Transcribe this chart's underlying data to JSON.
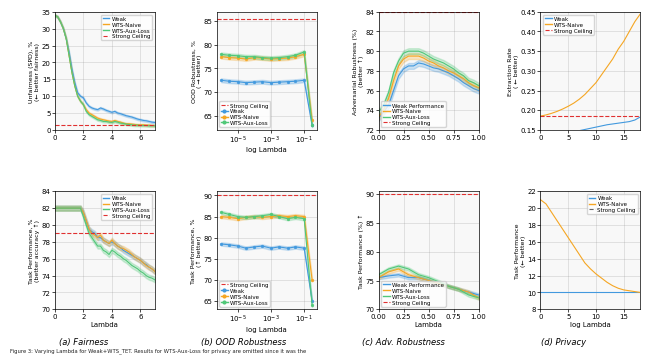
{
  "fairness_top": {
    "ylabel": "Unfairness (SPD), %\n(← better fairness)",
    "xlabel": "Lambda",
    "xlim": [
      0,
      7
    ],
    "ylim": [
      0,
      35
    ],
    "yticks": [
      0,
      5,
      10,
      15,
      20,
      25,
      30,
      35
    ],
    "strong_ceiling": 1.5,
    "weak_x": [
      0,
      0.2,
      0.4,
      0.6,
      0.8,
      1.0,
      1.2,
      1.4,
      1.6,
      1.8,
      2.0,
      2.2,
      2.4,
      2.6,
      2.8,
      3.0,
      3.2,
      3.4,
      3.6,
      3.8,
      4.0,
      4.2,
      4.4,
      4.6,
      4.8,
      5.0,
      5.2,
      5.4,
      5.6,
      5.8,
      6.0,
      6.2,
      6.4,
      6.6,
      6.8,
      7.0
    ],
    "weak_y": [
      34,
      33.5,
      32,
      30,
      27,
      23,
      18,
      14,
      11,
      10,
      9.5,
      8,
      7,
      6.5,
      6.2,
      6.0,
      6.5,
      6.2,
      5.8,
      5.5,
      5.2,
      5.5,
      5.0,
      4.8,
      4.5,
      4.2,
      4.0,
      3.8,
      3.5,
      3.2,
      3.0,
      2.8,
      2.7,
      2.5,
      2.3,
      2.2
    ],
    "naive_x": [
      0,
      0.2,
      0.4,
      0.6,
      0.8,
      1.0,
      1.2,
      1.4,
      1.6,
      1.8,
      2.0,
      2.2,
      2.4,
      2.6,
      2.8,
      3.0,
      3.2,
      3.4,
      3.6,
      3.8,
      4.0,
      4.2,
      4.4,
      4.6,
      4.8,
      5.0,
      5.2,
      5.4,
      5.6,
      5.8,
      6.0,
      6.2,
      6.4,
      6.6,
      6.8,
      7.0
    ],
    "naive_y": [
      34,
      33.5,
      32,
      30,
      27,
      22,
      17,
      13,
      10,
      8.5,
      7.5,
      6,
      5,
      4.5,
      4.0,
      3.5,
      3.2,
      3.0,
      2.8,
      2.6,
      2.5,
      2.8,
      2.5,
      2.3,
      2.0,
      1.8,
      1.8,
      1.7,
      1.6,
      1.5,
      1.5,
      1.5,
      1.4,
      1.4,
      1.3,
      1.3
    ],
    "aux_x": [
      0,
      0.2,
      0.4,
      0.6,
      0.8,
      1.0,
      1.2,
      1.4,
      1.6,
      1.8,
      2.0,
      2.2,
      2.4,
      2.6,
      2.8,
      3.0,
      3.2,
      3.4,
      3.6,
      3.8,
      4.0,
      4.2,
      4.4,
      4.6,
      4.8,
      5.0,
      5.2,
      5.4,
      5.6,
      5.8,
      6.0,
      6.2,
      6.4,
      6.6,
      6.8,
      7.0
    ],
    "aux_y": [
      34,
      33.5,
      32,
      30,
      27,
      22,
      17,
      13,
      10,
      8.5,
      7.5,
      5.5,
      4.5,
      4.0,
      3.5,
      3.0,
      2.8,
      2.5,
      2.5,
      2.3,
      2.2,
      2.5,
      2.3,
      2.0,
      1.9,
      1.7,
      1.6,
      1.5,
      1.4,
      1.4,
      1.3,
      1.3,
      1.3,
      1.2,
      1.2,
      1.2
    ],
    "weak_color": "#4299de",
    "naive_color": "#f5a623",
    "aux_color": "#50c878",
    "ceiling_color": "#e03030",
    "legend_order": [
      "Weak",
      "WTS-Naive",
      "WTS-Aux-Loss",
      "Strong Ceiling"
    ],
    "legend_loc": "upper right"
  },
  "fairness_bottom": {
    "ylabel": "Task Performance, %\n(better accuracy ↑)",
    "xlabel": "Lambda",
    "xlim": [
      0,
      7
    ],
    "ylim": [
      70,
      84
    ],
    "yticks": [
      70,
      72,
      74,
      76,
      78,
      80,
      82,
      84
    ],
    "strong_ceiling": 79.0,
    "weak_x": [
      0,
      0.2,
      0.4,
      0.6,
      0.8,
      1.0,
      1.2,
      1.4,
      1.6,
      1.8,
      2.0,
      2.2,
      2.4,
      2.6,
      2.8,
      3.0,
      3.2,
      3.4,
      3.6,
      3.8,
      4.0,
      4.2,
      4.4,
      4.6,
      4.8,
      5.0,
      5.2,
      5.4,
      5.6,
      5.8,
      6.0,
      6.2,
      6.4,
      6.6,
      6.8,
      7.0
    ],
    "weak_y": [
      82,
      82,
      82,
      82,
      82,
      82,
      82,
      82,
      82,
      82,
      81.5,
      80.5,
      79.5,
      79.2,
      79.0,
      78.5,
      78.5,
      78.2,
      78.0,
      77.8,
      78.0,
      77.8,
      77.5,
      77.3,
      77.0,
      76.8,
      76.6,
      76.4,
      76.2,
      76.0,
      75.8,
      75.5,
      75.3,
      75.0,
      74.8,
      74.5
    ],
    "naive_x": [
      0,
      0.2,
      0.4,
      0.6,
      0.8,
      1.0,
      1.2,
      1.4,
      1.6,
      1.8,
      2.0,
      2.2,
      2.4,
      2.6,
      2.8,
      3.0,
      3.2,
      3.4,
      3.6,
      3.8,
      4.0,
      4.2,
      4.4,
      4.6,
      4.8,
      5.0,
      5.2,
      5.4,
      5.6,
      5.8,
      6.0,
      6.2,
      6.4,
      6.6,
      6.8,
      7.0
    ],
    "naive_y": [
      82,
      82,
      82,
      82,
      82,
      82,
      82,
      82,
      82,
      82,
      81.5,
      80.5,
      79.5,
      79.0,
      78.8,
      78.5,
      78.8,
      78.2,
      78.0,
      77.8,
      78.2,
      77.8,
      77.5,
      77.3,
      77.2,
      77.0,
      76.8,
      76.5,
      76.2,
      76.0,
      75.8,
      75.5,
      75.2,
      75.0,
      74.8,
      74.5
    ],
    "aux_x": [
      0,
      0.2,
      0.4,
      0.6,
      0.8,
      1.0,
      1.2,
      1.4,
      1.6,
      1.8,
      2.0,
      2.2,
      2.4,
      2.6,
      2.8,
      3.0,
      3.2,
      3.4,
      3.6,
      3.8,
      4.0,
      4.2,
      4.4,
      4.6,
      4.8,
      5.0,
      5.2,
      5.4,
      5.6,
      5.8,
      6.0,
      6.2,
      6.4,
      6.6,
      6.8,
      7.0
    ],
    "aux_y": [
      82,
      82,
      82,
      82,
      82,
      82,
      82,
      82,
      82,
      82,
      81.0,
      80.0,
      79.0,
      78.5,
      78.0,
      77.5,
      77.5,
      77.0,
      76.8,
      76.5,
      77.0,
      76.8,
      76.5,
      76.3,
      76.0,
      75.8,
      75.5,
      75.2,
      75.0,
      74.8,
      74.5,
      74.3,
      74.0,
      73.8,
      73.7,
      73.5
    ],
    "weak_color": "#4299de",
    "naive_color": "#f5a623",
    "aux_color": "#50c878",
    "ceiling_color": "#e03030",
    "legend_order": [
      "Weak",
      "WTS-Naive",
      "WTS-Aux-Loss",
      "Strong Ceiling"
    ],
    "legend_loc": "upper right"
  },
  "ood_top": {
    "ylabel": "OOD Robustness, %\n( → better)",
    "xlabel": "log Lambda",
    "ylim": [
      62,
      87
    ],
    "yticks": [
      65,
      70,
      75,
      80,
      85
    ],
    "strong_ceiling": 85.5,
    "x_vals": [
      1e-06,
      3e-06,
      1e-05,
      3e-05,
      0.0001,
      0.0003,
      0.001,
      0.003,
      0.01,
      0.03,
      0.1,
      0.3
    ],
    "weak_y": [
      72.5,
      72.3,
      72.2,
      72.0,
      72.1,
      72.2,
      72.0,
      72.1,
      72.2,
      72.3,
      72.5,
      63.0
    ],
    "naive_y": [
      77.5,
      77.3,
      77.2,
      77.0,
      77.3,
      77.2,
      77.0,
      77.1,
      77.2,
      77.5,
      78.0,
      64.0
    ],
    "aux_y": [
      78.0,
      77.8,
      77.7,
      77.5,
      77.5,
      77.3,
      77.2,
      77.3,
      77.5,
      77.8,
      78.5,
      63.0
    ],
    "weak_color": "#4299de",
    "naive_color": "#f5a623",
    "aux_color": "#50c878",
    "ceiling_color": "#e03030",
    "legend_order": [
      "Strong Ceiling",
      "Weak",
      "WTS-Naive",
      "WTS-Aux-Loss"
    ],
    "legend_loc": "lower left"
  },
  "ood_bottom": {
    "ylabel": "Task Performance, %\n(↑ better)",
    "xlabel": "log Lambda",
    "ylim": [
      63,
      91
    ],
    "yticks": [
      65,
      70,
      75,
      80,
      85,
      90
    ],
    "strong_ceiling": 90.0,
    "x_vals": [
      1e-06,
      3e-06,
      1e-05,
      3e-05,
      0.0001,
      0.0003,
      0.001,
      0.003,
      0.01,
      0.03,
      0.1,
      0.3
    ],
    "weak_y": [
      78.5,
      78.3,
      78.0,
      77.5,
      77.8,
      78.0,
      77.5,
      77.8,
      77.5,
      77.8,
      77.5,
      65.0
    ],
    "naive_y": [
      85.0,
      84.8,
      84.5,
      84.8,
      85.0,
      84.8,
      85.0,
      85.2,
      85.0,
      85.2,
      85.0,
      70.0
    ],
    "aux_y": [
      86.0,
      85.5,
      85.0,
      84.8,
      85.0,
      85.2,
      85.5,
      85.0,
      84.5,
      84.8,
      84.5,
      64.0
    ],
    "weak_color": "#4299de",
    "naive_color": "#f5a623",
    "aux_color": "#50c878",
    "ceiling_color": "#e03030",
    "legend_order": [
      "Strong Ceiling",
      "Weak",
      "WTS-Naive",
      "WTS-Aux-Loss"
    ],
    "legend_loc": "lower left"
  },
  "adv_top": {
    "ylabel": "Adversarial Robustness (%)\n(better ↑)",
    "xlabel": "Lambda",
    "xlim": [
      0.0,
      1.0
    ],
    "ylim": [
      72,
      84
    ],
    "yticks": [
      72,
      74,
      76,
      78,
      80,
      82,
      84
    ],
    "strong_ceiling": 84.0,
    "x_vals": [
      0.0,
      0.05,
      0.1,
      0.15,
      0.2,
      0.25,
      0.3,
      0.35,
      0.4,
      0.45,
      0.5,
      0.55,
      0.6,
      0.65,
      0.7,
      0.75,
      0.8,
      0.85,
      0.9,
      0.95,
      1.0
    ],
    "weak_y": [
      73.2,
      73.8,
      74.5,
      76.0,
      77.5,
      78.2,
      78.5,
      78.5,
      78.8,
      78.7,
      78.5,
      78.3,
      78.2,
      78.0,
      77.8,
      77.5,
      77.2,
      76.8,
      76.5,
      76.2,
      76.0
    ],
    "naive_y": [
      73.3,
      74.0,
      75.2,
      77.0,
      78.5,
      79.2,
      79.5,
      79.5,
      79.5,
      79.3,
      79.0,
      78.8,
      78.5,
      78.3,
      78.0,
      77.8,
      77.5,
      77.2,
      76.8,
      76.5,
      76.3
    ],
    "aux_y": [
      73.8,
      74.5,
      75.8,
      77.8,
      79.0,
      79.8,
      80.0,
      80.0,
      80.0,
      79.8,
      79.5,
      79.2,
      79.0,
      78.8,
      78.5,
      78.2,
      77.8,
      77.5,
      77.0,
      76.8,
      76.5
    ],
    "weak_color": "#4299de",
    "naive_color": "#f5a623",
    "aux_color": "#50c878",
    "ceiling_color": "#e03030",
    "legend_order": [
      "Weak Performance",
      "WTS-Naive",
      "WTS-Aux-Loss",
      "Strong Ceiling"
    ],
    "legend_loc": "lower left"
  },
  "adv_bottom": {
    "ylabel": "Task Performance (%) ↑",
    "xlabel": "Lambda",
    "xlim": [
      0.0,
      1.0
    ],
    "ylim": [
      70.0,
      90.5
    ],
    "yticks": [
      70,
      75,
      80,
      85,
      90
    ],
    "strong_ceiling": 90.0,
    "x_vals": [
      0.0,
      0.1,
      0.2,
      0.3,
      0.4,
      0.5,
      0.6,
      0.7,
      0.8,
      0.9,
      1.0
    ],
    "weak_y": [
      75.5,
      75.8,
      76.0,
      75.5,
      75.5,
      75.0,
      74.5,
      74.0,
      73.5,
      73.0,
      72.5
    ],
    "naive_y": [
      75.5,
      76.5,
      77.0,
      76.0,
      75.5,
      75.0,
      74.5,
      74.0,
      73.5,
      73.0,
      72.0
    ],
    "aux_y": [
      76.0,
      77.0,
      77.5,
      77.0,
      76.0,
      75.5,
      74.8,
      74.0,
      73.5,
      72.5,
      72.0
    ],
    "weak_color": "#4299de",
    "naive_color": "#f5a623",
    "aux_color": "#50c878",
    "ceiling_color": "#e03030",
    "legend_order": [
      "Weak Performance",
      "WTS-Naive",
      "WTS-Aux-Loss",
      "Strong Ceiling"
    ],
    "legend_loc": "lower left"
  },
  "privacy_top": {
    "ylabel": "Extraction Rate\n( ← better)",
    "xlabel": "log Lambda",
    "xlim": [
      0,
      18
    ],
    "ylim": [
      0.15,
      0.45
    ],
    "yticks": [
      0.15,
      0.2,
      0.25,
      0.3,
      0.35,
      0.4,
      0.45
    ],
    "strong_ceiling": 0.185,
    "x_vals": [
      0,
      1,
      2,
      3,
      4,
      5,
      6,
      7,
      8,
      9,
      10,
      11,
      12,
      13,
      14,
      15,
      16,
      17,
      18
    ],
    "weak_y": [
      0.133,
      0.135,
      0.137,
      0.139,
      0.141,
      0.143,
      0.145,
      0.148,
      0.151,
      0.154,
      0.157,
      0.16,
      0.163,
      0.165,
      0.167,
      0.169,
      0.171,
      0.175,
      0.183
    ],
    "naive_y": [
      0.185,
      0.188,
      0.192,
      0.197,
      0.203,
      0.21,
      0.218,
      0.228,
      0.24,
      0.255,
      0.27,
      0.29,
      0.31,
      0.33,
      0.355,
      0.375,
      0.4,
      0.425,
      0.445
    ],
    "weak_color": "#4299de",
    "naive_color": "#f5a623",
    "ceiling_color": "#e03030",
    "legend_order": [
      "Weak",
      "WTS-Naive",
      "Strong Ceiling"
    ],
    "legend_loc": "upper left"
  },
  "privacy_bottom": {
    "ylabel": "Task Performance\n(← better)",
    "xlabel": "log Lambda",
    "xlim": [
      0,
      18
    ],
    "ylim": [
      8,
      22
    ],
    "yticks": [
      8,
      10,
      12,
      14,
      16,
      18,
      20,
      22
    ],
    "x_vals": [
      0,
      1,
      2,
      3,
      4,
      5,
      6,
      7,
      8,
      9,
      10,
      11,
      12,
      13,
      14,
      15,
      16,
      17,
      18
    ],
    "weak_y": [
      10,
      10,
      10,
      10,
      10,
      10,
      10,
      10,
      10,
      10,
      10,
      10,
      10,
      10,
      10,
      10,
      10,
      10,
      10
    ],
    "naive_y": [
      21,
      20.5,
      19.5,
      18.5,
      17.5,
      16.5,
      15.5,
      14.5,
      13.5,
      12.8,
      12.2,
      11.7,
      11.2,
      10.8,
      10.5,
      10.3,
      10.2,
      10.1,
      10.0
    ],
    "weak_color": "#4299de",
    "naive_color": "#f5a623",
    "ceiling_color": "#e03030",
    "legend_order": [
      "Weak",
      "WTS-Naive",
      "Strong Ceiling"
    ],
    "legend_loc": "upper right"
  },
  "captions": [
    "(a) Fairness",
    "(b) OOD Robustness",
    "(c) Adv. Robustness",
    "(d) Privacy"
  ],
  "fig_title": "Figure 3: Varying Lambda for Weak+WTS_TET. Results for WTS-Aux-Loss for privacy are omitted since it was the"
}
